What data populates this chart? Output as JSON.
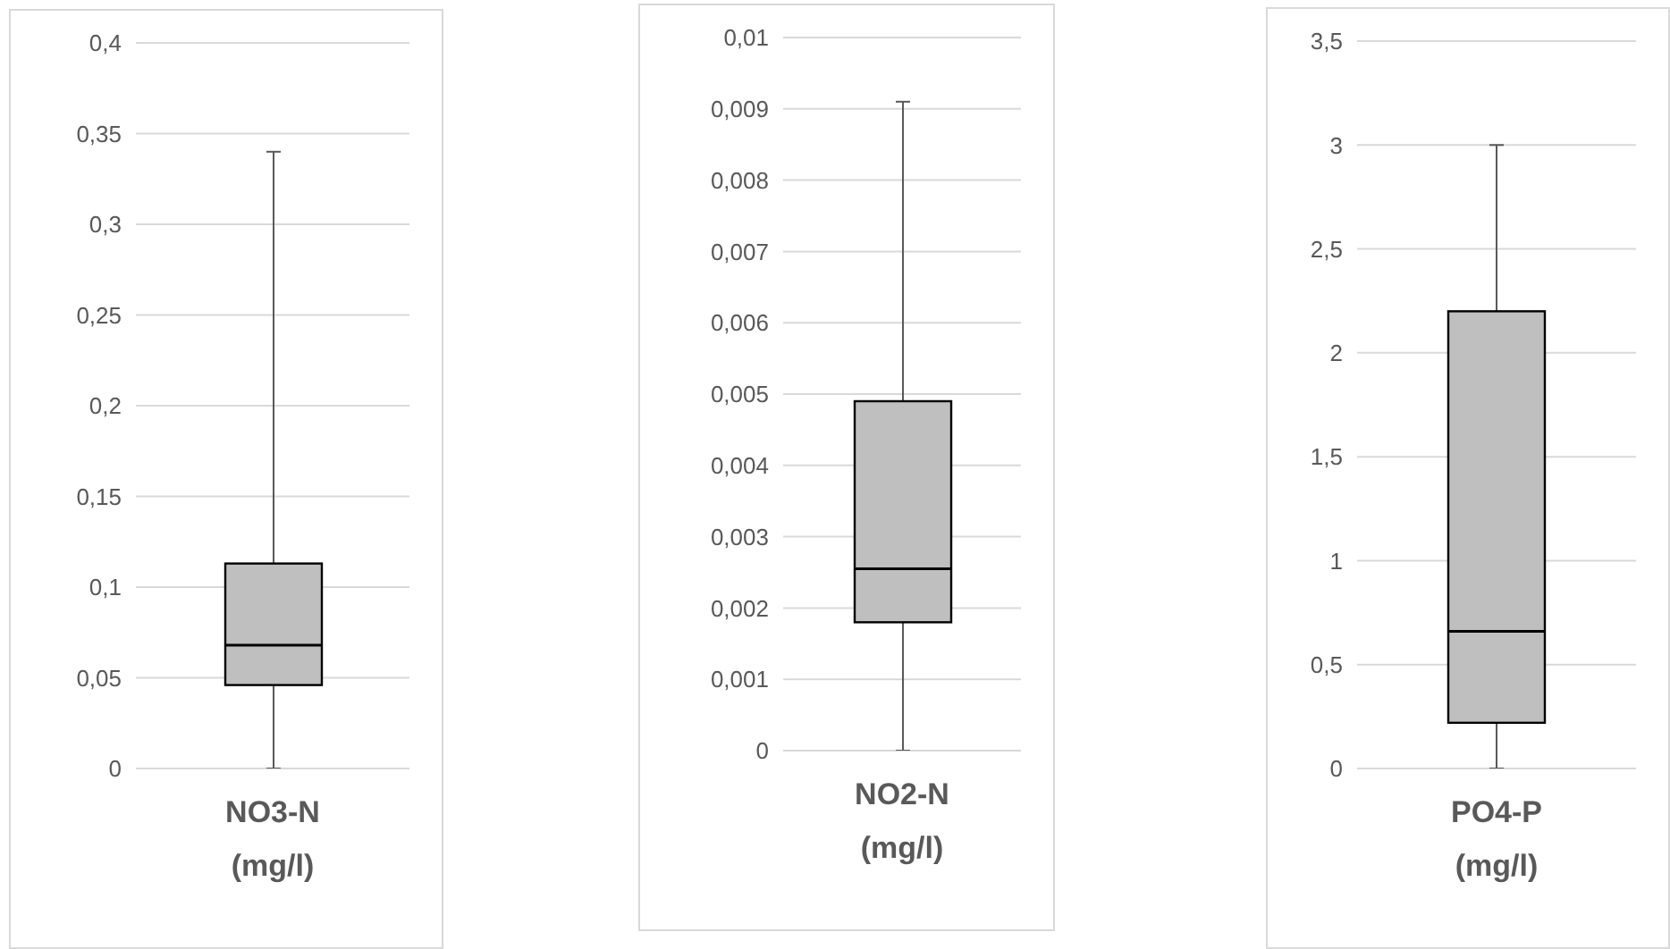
{
  "chart_data": [
    {
      "type": "box",
      "categories": [
        "NO3-N (mg/l)"
      ],
      "color": "#bfbfbf",
      "grid": "y",
      "ylim": [
        0,
        0.4
      ],
      "yticks": [
        0,
        {
          "value": 0.05,
          "label": "0,05"
        },
        {
          "value": 0.1,
          "label": "0,1"
        },
        {
          "value": 0.15,
          "label": "0,15"
        },
        {
          "value": 0.2,
          "label": "0,2"
        },
        {
          "value": 0.25,
          "label": "0,25"
        },
        {
          "value": 0.3,
          "label": "0,3"
        },
        {
          "value": 0.35,
          "label": "0,35"
        },
        {
          "value": 0.4,
          "label": "0,4"
        }
      ],
      "boxes": [
        {
          "low": 0,
          "q1": 0.046,
          "median": 0.068,
          "q3": 0.113,
          "high": 0.34
        }
      ]
    },
    {
      "type": "box",
      "categories": [
        "NO2-N (mg/l)"
      ],
      "color": "#bfbfbf",
      "grid": "y",
      "ylim": [
        0,
        0.01
      ],
      "yticks": [
        0,
        {
          "value": 0.001,
          "label": "0,001"
        },
        {
          "value": 0.002,
          "label": "0,002"
        },
        {
          "value": 0.003,
          "label": "0,003"
        },
        {
          "value": 0.004,
          "label": "0,004"
        },
        {
          "value": 0.005,
          "label": "0,005"
        },
        {
          "value": 0.006,
          "label": "0,006"
        },
        {
          "value": 0.007,
          "label": "0,007"
        },
        {
          "value": 0.008,
          "label": "0,008"
        },
        {
          "value": 0.009,
          "label": "0,009"
        },
        {
          "value": 0.01,
          "label": "0,01"
        }
      ],
      "boxes": [
        {
          "low": 0,
          "q1": 0.0018,
          "median": 0.00255,
          "q3": 0.0049,
          "high": 0.0091
        }
      ]
    },
    {
      "type": "box",
      "categories": [
        "PO4-P (mg/l)"
      ],
      "color": "#bfbfbf",
      "grid": "y",
      "ylim": [
        0,
        3.5
      ],
      "yticks": [
        0,
        {
          "value": 0.5,
          "label": "0,5"
        },
        1,
        {
          "value": 1.5,
          "label": "1,5"
        },
        2,
        {
          "value": 2.5,
          "label": "2,5"
        },
        3,
        {
          "value": 3.5,
          "label": "3,5"
        }
      ],
      "boxes": [
        {
          "low": 0,
          "q1": 0.22,
          "median": 0.66,
          "q3": 2.2,
          "high": 3.0
        }
      ]
    }
  ]
}
